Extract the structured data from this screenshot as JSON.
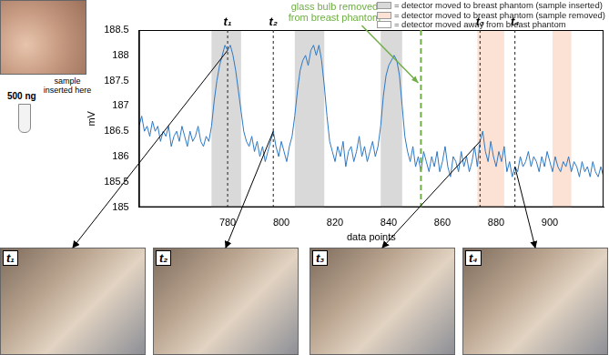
{
  "chart_data": {
    "type": "line",
    "x_label": "data points",
    "y_label": "mV",
    "x": [
      747,
      748,
      749,
      750,
      751,
      752,
      753,
      754,
      755,
      756,
      757,
      758,
      759,
      760,
      761,
      762,
      763,
      764,
      765,
      766,
      767,
      768,
      769,
      770,
      771,
      772,
      773,
      774,
      775,
      776,
      777,
      778,
      779,
      780,
      781,
      782,
      783,
      784,
      785,
      786,
      787,
      788,
      789,
      790,
      791,
      792,
      793,
      794,
      795,
      796,
      797,
      798,
      799,
      800,
      801,
      802,
      803,
      804,
      805,
      806,
      807,
      808,
      809,
      810,
      811,
      812,
      813,
      814,
      815,
      816,
      817,
      818,
      819,
      820,
      821,
      822,
      823,
      824,
      825,
      826,
      827,
      828,
      829,
      830,
      831,
      832,
      833,
      834,
      835,
      836,
      837,
      838,
      839,
      840,
      841,
      842,
      843,
      844,
      845,
      846,
      847,
      848,
      849,
      850,
      851,
      852,
      853,
      854,
      855,
      856,
      857,
      858,
      859,
      860,
      861,
      862,
      863,
      864,
      865,
      866,
      867,
      868,
      869,
      870,
      871,
      872,
      873,
      874,
      875,
      876,
      877,
      878,
      879,
      880,
      881,
      882,
      883,
      884,
      885,
      886,
      887,
      888,
      889,
      890,
      891,
      892,
      893,
      894,
      895,
      896,
      897,
      898,
      899,
      900,
      901,
      902,
      903,
      904,
      905,
      906,
      907,
      908,
      909,
      910,
      911,
      912,
      913,
      914,
      915,
      916,
      917,
      918,
      919,
      920
    ],
    "values": [
      186.6,
      186.8,
      186.5,
      186.6,
      186.4,
      186.7,
      186.5,
      186.6,
      186.3,
      186.5,
      186.4,
      186.6,
      186.2,
      186.4,
      186.5,
      186.3,
      186.6,
      186.4,
      186.2,
      186.5,
      186.3,
      186.4,
      186.6,
      186.3,
      186.2,
      186.4,
      186.3,
      186.6,
      187.1,
      187.5,
      187.8,
      188.0,
      188.2,
      188.1,
      188.2,
      188.0,
      187.7,
      187.3,
      186.9,
      186.5,
      186.3,
      186.2,
      186.4,
      186.1,
      186.3,
      186.0,
      186.2,
      185.9,
      186.1,
      186.3,
      186.5,
      186.2,
      186.0,
      186.3,
      186.1,
      185.9,
      186.2,
      186.4,
      186.8,
      187.3,
      187.7,
      187.9,
      188.0,
      187.8,
      188.1,
      188.2,
      188.0,
      188.2,
      187.9,
      187.4,
      186.8,
      186.3,
      186.1,
      185.9,
      186.2,
      186.0,
      186.3,
      185.8,
      186.1,
      186.2,
      185.9,
      186.1,
      186.4,
      186.0,
      186.2,
      185.9,
      186.1,
      186.3,
      186.0,
      186.2,
      186.6,
      187.2,
      187.6,
      187.8,
      187.9,
      188.0,
      187.9,
      187.6,
      187.0,
      186.4,
      186.1,
      185.9,
      186.2,
      185.8,
      186.0,
      185.7,
      186.1,
      185.9,
      185.7,
      186.0,
      185.8,
      186.1,
      185.7,
      185.9,
      186.2,
      185.8,
      185.6,
      186.0,
      185.9,
      185.7,
      186.1,
      185.8,
      186.0,
      185.7,
      185.9,
      186.2,
      185.8,
      186.3,
      186.5,
      186.1,
      185.9,
      186.3,
      186.0,
      185.8,
      186.1,
      185.9,
      186.2,
      185.7,
      185.9,
      185.6,
      185.8,
      185.7,
      186.0,
      185.8,
      185.9,
      186.1,
      185.8,
      186.0,
      185.9,
      185.7,
      186.0,
      185.8,
      186.1,
      185.9,
      185.7,
      186.0,
      185.8,
      185.7,
      185.9,
      185.8,
      186.0,
      185.7,
      185.9,
      185.8,
      185.6,
      185.9,
      185.7,
      185.8,
      185.6,
      185.9,
      185.7,
      185.6,
      185.8,
      185.6
    ],
    "color": "#2e78c4",
    "xlim": [
      747,
      920
    ],
    "xticks": [
      780,
      800,
      820,
      840,
      860,
      880,
      900
    ],
    "ylim": [
      185,
      188.5
    ],
    "yticks": [
      185,
      185.5,
      186,
      186.5,
      187,
      187.5,
      188,
      188.5
    ],
    "grid": false,
    "legend_items": [
      {
        "label": "= detector moved to breast phantom (sample inserted)",
        "color": "#d9d9d9",
        "spans": [
          [
            774,
            785
          ],
          [
            805,
            816
          ],
          [
            837,
            845
          ]
        ]
      },
      {
        "label": "= detector moved to breast phantom (sample removed)",
        "color": "#fbe2d5",
        "spans": [
          [
            873,
            883
          ],
          [
            901,
            908
          ]
        ]
      },
      {
        "label": "= detector moved away from breast phantom",
        "color": "#ffffff",
        "spans": []
      }
    ],
    "markers": [
      {
        "label": "t₁",
        "x": 780
      },
      {
        "label": "t₂",
        "x": 797
      },
      {
        "label": "t₃",
        "x": 874
      },
      {
        "label": "t₄",
        "x": 887
      }
    ],
    "event": {
      "label": "glass bulb removed from breast phantom",
      "x": 852,
      "color": "#70ad47"
    }
  },
  "figure": {
    "sample_label": "500 ng",
    "insert_label": "sample inserted here"
  }
}
